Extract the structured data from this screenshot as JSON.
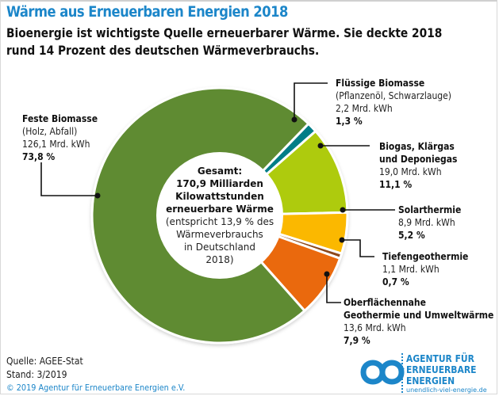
{
  "header": {
    "title": "Wärme aus Erneuerbaren Energien 2018",
    "subtitle_line1": "Bioenergie ist wichtigste Quelle erneuerbarer Wärme. Sie deckte 2018",
    "subtitle_line2": "rund 14 Prozent des deutschen Wärmeverbrauchs."
  },
  "chart_data": {
    "type": "pie",
    "variant": "donut",
    "title": "Wärme aus Erneuerbaren Energien 2018",
    "unit": "Mrd. kWh",
    "total_label": "170,9 Milliarden Kilowattstunden",
    "slices": [
      {
        "name": "Feste Biomasse",
        "detail": "(Holz, Abfall)",
        "value_label": "126,1 Mrd. kWh",
        "value": 126.1,
        "percent": 73.8,
        "percent_label": "73,8 %",
        "color": "#5e8b31"
      },
      {
        "name": "Flüssige Biomasse",
        "detail": "(Pflanzenöl, Schwarzlauge)",
        "value_label": "2,2 Mrd. kWh",
        "value": 2.2,
        "percent": 1.3,
        "percent_label": "1,3 %",
        "color": "#007d87"
      },
      {
        "name": "Biogas, Klärgas und Deponiegas",
        "name_line1": "Biogas, Klärgas",
        "name_line2": "und Deponiegas",
        "value_label": "19,0 Mrd. kWh",
        "value": 19.0,
        "percent": 11.1,
        "percent_label": "11,1 %",
        "color": "#aecb0c"
      },
      {
        "name": "Solarthermie",
        "value_label": "8,9 Mrd. kWh",
        "value": 8.9,
        "percent": 5.2,
        "percent_label": "5,2 %",
        "color": "#fbb800"
      },
      {
        "name": "Tiefengeothermie",
        "value_label": "1,1 Mrd. kWh",
        "value": 1.1,
        "percent": 0.7,
        "percent_label": "0,7 %",
        "color": "#8e4a1e"
      },
      {
        "name": "Oberflächennahe Geothermie und Umweltwärme",
        "name_line1": "Oberflächennahe",
        "name_line2": "Geothermie und Umweltwärme",
        "value_label": "13,6 Mrd. kWh",
        "value": 13.6,
        "percent": 7.9,
        "percent_label": "7,9 %",
        "color": "#ea690b"
      }
    ],
    "legend": "callouts"
  },
  "center": {
    "line1": "Gesamt:",
    "line2": "170,9 Milliarden",
    "line3": "Kilowattstunden",
    "line4": "erneuerbare Wärme",
    "line5": "(entspricht 13,9 % des",
    "line6": "Wärmeverbrauchs",
    "line7": "in Deutschland",
    "line8": "2018)"
  },
  "footer": {
    "source": "Quelle: AGEE-Stat",
    "stand": "Stand: 3/2019",
    "copyright": "© 2019 Agentur für Erneuerbare Energien e.V.",
    "logo_line1": "AGENTUR FÜR",
    "logo_line2": "ERNEUERBARE",
    "logo_line3": "ENERGIEN",
    "logo_url": "unendlich-viel-energie.de"
  }
}
